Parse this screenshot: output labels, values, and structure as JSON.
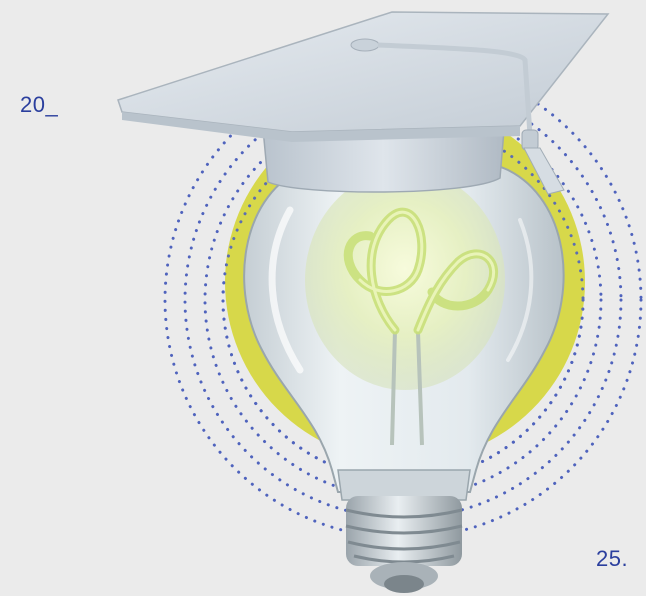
{
  "labels": {
    "top": "20_",
    "bottom": "25."
  },
  "illustration": {
    "subject": "lightbulb-with-graduation-cap",
    "colors": {
      "background": "#ebebeb",
      "label_text": "#2b3f9e",
      "dots": "#4f63bd",
      "halo": "#d7d84a",
      "filament": "#c9e07a",
      "cap": "#d3dbe4",
      "glass": "#e6eef2"
    }
  }
}
